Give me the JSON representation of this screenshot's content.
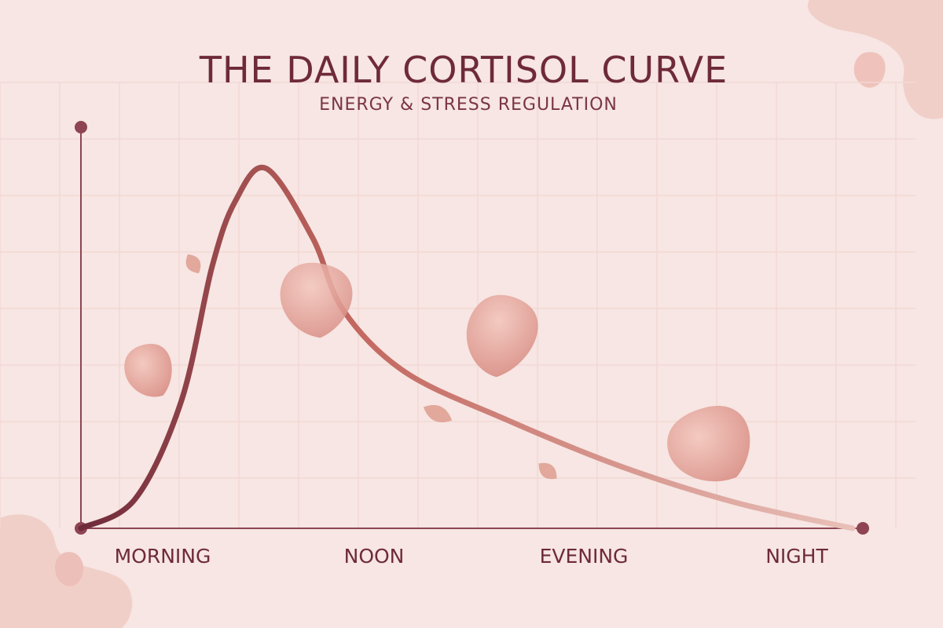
{
  "header": {
    "title": "THE DAILY CORTISOL CURVE",
    "subtitle": "ENERGY & STRESS REGULATION"
  },
  "colors": {
    "background": "#f7e6e3",
    "curve_start": "#6e2a3a",
    "curve_mid": "#c2675f",
    "curve_end": "#e8c0b8",
    "axis": "#8e4452",
    "petal": "#e6a9a0",
    "grid": "#f2d8d4"
  },
  "chart_data": {
    "type": "line",
    "title": "THE DAILY CORTISOL CURVE",
    "subtitle": "ENERGY & STRESS REGULATION",
    "x_categories": [
      "MORNING",
      "NOON",
      "EVENING",
      "NIGHT"
    ],
    "xlabel": "",
    "ylabel": "",
    "xlim": [
      0,
      1
    ],
    "ylim": [
      0,
      1
    ],
    "grid": true,
    "legend": "none",
    "series": [
      {
        "x": [
          0,
          0.07,
          0.13,
          0.17,
          0.2,
          0.24,
          0.3,
          0.34,
          0.42,
          0.55,
          0.7,
          0.85,
          1.0
        ],
        "y": [
          0,
          0.08,
          0.35,
          0.72,
          0.9,
          0.99,
          0.8,
          0.6,
          0.43,
          0.3,
          0.17,
          0.07,
          0
        ]
      }
    ]
  }
}
